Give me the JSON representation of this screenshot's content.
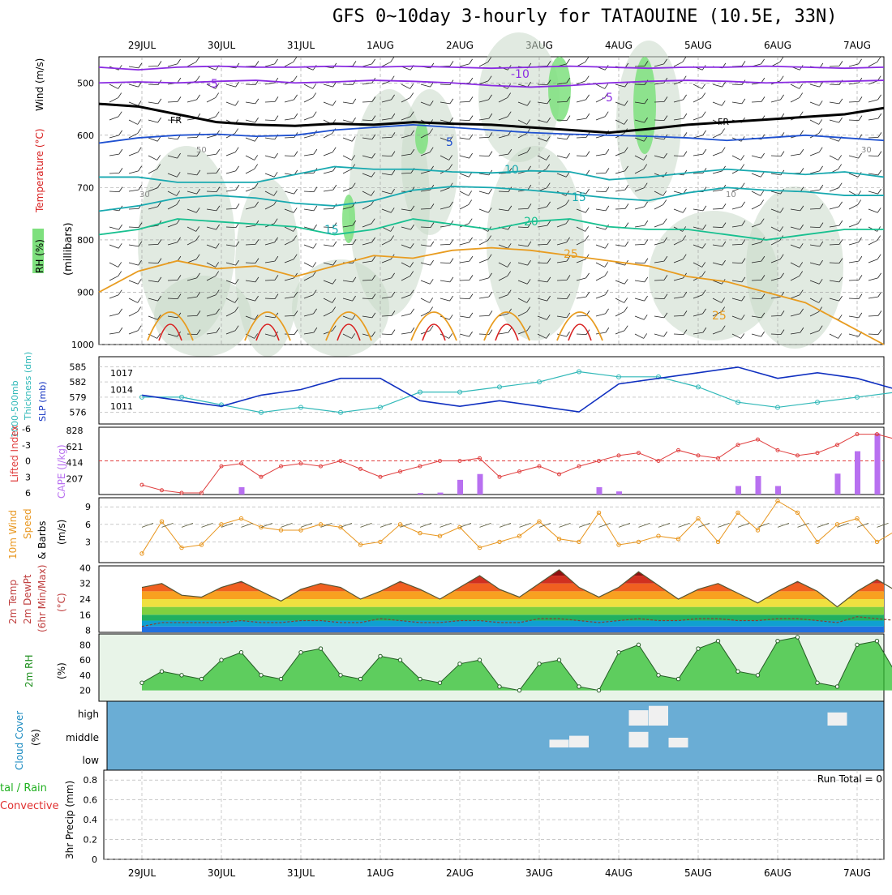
{
  "title": "GFS 0~10day 3-hourly for TATAOUINE (10.5E, 33N)",
  "dates": [
    "29JUL",
    "30JUL",
    "31JUL",
    "1AUG",
    "2AUG",
    "3AUG",
    "4AUG",
    "5AUG",
    "6AUG",
    "7AUG"
  ],
  "labels": {
    "upper": {
      "rh": "RH (%)",
      "temp": "Temperature (°C)",
      "wind": "Wind (m/s)",
      "mb": "(millibars)"
    },
    "thk": {
      "line1": "1000-500mb",
      "line2": "Thickness (dm)",
      "slp": "SLP (mb)"
    },
    "cape": {
      "li": "Lifted Index",
      "cape": "CAPE (J/kg)"
    },
    "wind": {
      "line1": "10m Wind",
      "line2": "Speed",
      "line3": "& Barbs",
      "units": "(m/s)"
    },
    "temp": {
      "line1": "2m Temp",
      "line2": "2m DewPt",
      "line3": "(6hr Min/Max)",
      "units": "(°C)"
    },
    "rh": {
      "line1": "2m RH",
      "units": "(%)"
    },
    "cloud": {
      "line1": "Cloud Cover",
      "units": "(%)"
    },
    "precip": {
      "line1": "tal / Rain",
      "line2": "Convective",
      "line3": "3hr Precip (mm)",
      "run_total": "Run Total = 0"
    }
  },
  "contour_labels": {
    "fr": "FR",
    "t_m10": "-10",
    "t_m5": "-5",
    "t_5": "5",
    "t_10": "10",
    "t_15": "15",
    "t_20": "20",
    "t_25": "25",
    "rh30": "30",
    "rh50": "50",
    "rh10": "10"
  },
  "colors": {
    "rh_green": "#7ee07e",
    "temp_purple": "#8a2be2",
    "temp_blue": "#1e50d0",
    "temp_teal": "#18a9b0",
    "temp_green": "#18c090",
    "temp_orange": "#e89c20",
    "temp_red": "#d82020",
    "slp": "#1030c0",
    "thk": "#30b8b8",
    "li": "#e04040",
    "cape": "#b870f0",
    "wind": "#e8961e",
    "cloud_bg": "#6aadd5",
    "rh_fill": "#30c030"
  },
  "chart_data": [
    {
      "type": "heatmap",
      "name": "upper-air",
      "ylabel": "(millibars)",
      "yticks": [
        500,
        600,
        700,
        800,
        900,
        1000
      ],
      "xticks": [
        "29JUL",
        "30JUL",
        "31JUL",
        "1AUG",
        "2AUG",
        "3AUG",
        "4AUG",
        "5AUG",
        "6AUG",
        "7AUG"
      ],
      "isotherms": [
        {
          "label": "-10",
          "pressure": [
            470,
            475,
            470,
            468,
            470,
            470,
            468,
            470,
            468,
            470,
            472,
            470,
            468,
            470,
            472,
            470,
            470,
            468,
            470,
            472,
            470
          ]
        },
        {
          "label": "-5",
          "pressure": [
            500,
            498,
            500,
            497,
            495,
            500,
            498,
            495,
            497,
            500,
            505,
            508,
            505,
            500,
            497,
            495,
            497,
            500,
            498,
            497,
            495
          ]
        },
        {
          "label": "0",
          "pressure": [
            540,
            545,
            560,
            575,
            580,
            582,
            578,
            580,
            575,
            578,
            580,
            585,
            590,
            595,
            588,
            580,
            575,
            570,
            565,
            560,
            548
          ]
        },
        {
          "label": "5",
          "pressure": [
            615,
            605,
            600,
            598,
            602,
            600,
            590,
            585,
            580,
            585,
            590,
            595,
            598,
            600,
            602,
            605,
            610,
            605,
            600,
            605,
            610
          ]
        },
        {
          "label": "10",
          "pressure": [
            680,
            680,
            690,
            690,
            690,
            675,
            660,
            665,
            665,
            670,
            672,
            668,
            670,
            685,
            680,
            672,
            665,
            670,
            675,
            670,
            680
          ]
        },
        {
          "label": "15",
          "pressure": [
            745,
            735,
            720,
            715,
            720,
            730,
            735,
            725,
            705,
            698,
            700,
            705,
            712,
            720,
            725,
            710,
            700,
            705,
            708,
            715,
            715
          ]
        },
        {
          "label": "20",
          "pressure": [
            790,
            780,
            760,
            765,
            770,
            775,
            790,
            780,
            760,
            770,
            780,
            765,
            760,
            775,
            780,
            780,
            790,
            800,
            790,
            780,
            780
          ]
        },
        {
          "label": "25",
          "pressure": [
            900,
            860,
            840,
            855,
            850,
            870,
            850,
            830,
            835,
            820,
            815,
            820,
            830,
            840,
            850,
            870,
            880,
            900,
            920,
            960,
            1000
          ]
        }
      ]
    },
    {
      "type": "line",
      "name": "thickness-slp",
      "x_hours": [
        0,
        12,
        24,
        36,
        48,
        60,
        72,
        84,
        96,
        108,
        120,
        132,
        144,
        156,
        168,
        180,
        192,
        204,
        216,
        228,
        240
      ],
      "series": [
        {
          "name": "1000-500mb Thickness (dm)",
          "axis": "left",
          "values": [
            579,
            579,
            577.5,
            576,
            577,
            576,
            577,
            580,
            580,
            581,
            582,
            584,
            583,
            583,
            581,
            578,
            577,
            578,
            579,
            580,
            579
          ]
        },
        {
          "name": "SLP (mb)",
          "axis": "right",
          "values": [
            1013,
            1012,
            1011,
            1013,
            1014,
            1016,
            1016,
            1012,
            1011,
            1012,
            1011,
            1010,
            1015,
            1016,
            1017,
            1018,
            1016,
            1017,
            1016,
            1014,
            1014
          ]
        }
      ],
      "yticks_left": [
        576,
        579,
        582,
        585
      ],
      "yticks_right": [
        1011,
        1014,
        1017
      ]
    },
    {
      "type": "bar",
      "name": "cape-li",
      "x_hours": [
        0,
        6,
        12,
        18,
        24,
        30,
        36,
        42,
        48,
        54,
        60,
        66,
        72,
        78,
        84,
        90,
        96,
        102,
        108,
        114,
        120,
        126,
        132,
        138,
        144,
        150,
        156,
        162,
        168,
        174,
        180,
        186,
        192,
        198,
        204,
        210,
        216,
        222,
        228,
        234,
        240
      ],
      "series": [
        {
          "name": "CAPE (J/kg)",
          "values": [
            0,
            0,
            0,
            0,
            0,
            95,
            0,
            0,
            0,
            0,
            0,
            0,
            0,
            0,
            20,
            25,
            190,
            265,
            0,
            0,
            0,
            0,
            0,
            95,
            40,
            0,
            0,
            0,
            0,
            0,
            110,
            240,
            110,
            0,
            0,
            270,
            560,
            790,
            780,
            470,
            0
          ]
        },
        {
          "name": "Lifted Index",
          "values": [
            4.5,
            5.5,
            6,
            6,
            1,
            0.5,
            3,
            1,
            0.5,
            1,
            0,
            1.5,
            3,
            2,
            1,
            0,
            0,
            -0.5,
            3,
            2,
            1,
            2.5,
            1,
            0,
            -1,
            -1.5,
            0,
            -2,
            -1,
            -0.5,
            -3,
            -4,
            -2,
            -1,
            -1.5,
            -3,
            -5,
            -5,
            -4,
            -2,
            -2
          ]
        }
      ],
      "yticks_left": [
        6,
        3,
        0,
        -3,
        -6
      ],
      "yticks_right": [
        207,
        414,
        621,
        828
      ]
    },
    {
      "type": "line",
      "name": "10m-wind",
      "ylabel": "(m/s)",
      "yticks": [
        3,
        6,
        9
      ],
      "x_hours": [
        0,
        6,
        12,
        18,
        24,
        30,
        36,
        42,
        48,
        54,
        60,
        66,
        72,
        78,
        84,
        90,
        96,
        102,
        108,
        114,
        120,
        126,
        132,
        138,
        144,
        150,
        156,
        162,
        168,
        174,
        180,
        186,
        192,
        198,
        204,
        210,
        216,
        222,
        228,
        234,
        240
      ],
      "values": [
        1,
        6.5,
        2,
        2.5,
        6,
        7,
        5.5,
        5,
        5,
        6,
        5.5,
        2.5,
        3,
        6,
        4.5,
        4,
        5.5,
        2,
        3,
        4,
        6.5,
        3.5,
        3,
        8,
        2.5,
        3,
        4,
        3.5,
        7,
        3,
        8,
        5,
        10,
        8,
        3,
        6,
        7,
        3,
        5,
        1.5,
        2
      ]
    },
    {
      "type": "area",
      "name": "2m-temp",
      "ylabel": "(°C)",
      "yticks": [
        8,
        16,
        24,
        32,
        40
      ],
      "x_hours": [
        0,
        6,
        12,
        18,
        24,
        30,
        36,
        42,
        48,
        54,
        60,
        66,
        72,
        78,
        84,
        90,
        96,
        102,
        108,
        114,
        120,
        126,
        132,
        138,
        144,
        150,
        156,
        162,
        168,
        174,
        180,
        186,
        192,
        198,
        204,
        210,
        216,
        222,
        228,
        234,
        240
      ],
      "series": [
        {
          "name": "2m Temp",
          "values": [
            30,
            32,
            26,
            25,
            30,
            33,
            28,
            23,
            29,
            32,
            30,
            24,
            28,
            33,
            29,
            24,
            30,
            36,
            29,
            25,
            32,
            39,
            30,
            25,
            30,
            38,
            31,
            24,
            29,
            32,
            27,
            22,
            28,
            33,
            28,
            20,
            28,
            34,
            28,
            22,
            23
          ]
        },
        {
          "name": "2m DewPt",
          "values": [
            10,
            12,
            12,
            12,
            12,
            13,
            12,
            12,
            13,
            13,
            12,
            12,
            14,
            13,
            12,
            12,
            13,
            13,
            12,
            12,
            14,
            14,
            13,
            12,
            13,
            14,
            13,
            13,
            14,
            14,
            13,
            13,
            14,
            14,
            13,
            12,
            15,
            14,
            13,
            12,
            14
          ]
        }
      ]
    },
    {
      "type": "area",
      "name": "2m-rh",
      "ylabel": "(%)",
      "yticks": [
        20,
        40,
        60,
        80
      ],
      "x_hours": [
        0,
        6,
        12,
        18,
        24,
        30,
        36,
        42,
        48,
        54,
        60,
        66,
        72,
        78,
        84,
        90,
        96,
        102,
        108,
        114,
        120,
        126,
        132,
        138,
        144,
        150,
        156,
        162,
        168,
        174,
        180,
        186,
        192,
        198,
        204,
        210,
        216,
        222,
        228,
        234,
        240
      ],
      "values": [
        30,
        45,
        40,
        35,
        60,
        70,
        40,
        35,
        70,
        75,
        40,
        35,
        65,
        60,
        35,
        30,
        55,
        60,
        25,
        20,
        55,
        60,
        25,
        20,
        70,
        80,
        40,
        35,
        75,
        85,
        45,
        40,
        85,
        90,
        30,
        25,
        80,
        85,
        40,
        35,
        65
      ]
    },
    {
      "type": "heatmap",
      "name": "cloud-cover",
      "yticks": [
        "high",
        "middle",
        "low"
      ],
      "cells": [
        {
          "x_hour": 126,
          "level": "middle",
          "cover": 40
        },
        {
          "x_hour": 132,
          "level": "middle",
          "cover": 60
        },
        {
          "x_hour": 150,
          "level": "middle",
          "cover": 80
        },
        {
          "x_hour": 150,
          "level": "high",
          "cover": 70
        },
        {
          "x_hour": 156,
          "level": "high",
          "cover": 90
        },
        {
          "x_hour": 162,
          "level": "middle",
          "cover": 50
        },
        {
          "x_hour": 210,
          "level": "high",
          "cover": 60
        }
      ]
    },
    {
      "type": "bar",
      "name": "3hr-precip",
      "ylabel": "3hr Precip (mm)",
      "yticks": [
        0,
        0.2,
        0.4,
        0.6,
        0.8
      ],
      "values": []
    }
  ]
}
